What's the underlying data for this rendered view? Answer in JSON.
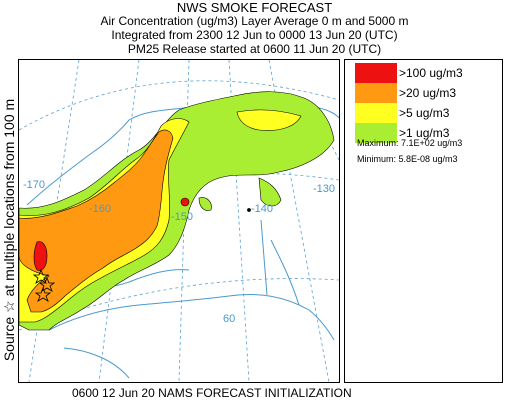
{
  "header": {
    "title": "NWS SMOKE FORECAST",
    "line1": "Air Concentration (ug/m3) Layer Average    0 m  and  5000 m",
    "line2": "Integrated from 2300 12 Jun to 0000 13 Jun 20 (UTC)",
    "line3": "PM25 Release started at 0600 11 Jun 20 (UTC)"
  },
  "side_label": "Source ☆   at multiple locations    from   100 m",
  "footer": "0600 12 Jun 20 NAMS FORECAST INITIALIZATION",
  "legend": {
    "items": [
      {
        "label": ">100 ug/m3",
        "color": "#ee1111"
      },
      {
        "label": ">20 ug/m3",
        "color": "#ff9911"
      },
      {
        "label": ">5 ug/m3",
        "color": "#ffff22"
      },
      {
        "label": ">1 ug/m3",
        "color": "#aaee33"
      }
    ],
    "maximum": "Maximum:  7.1E+02 ug/m3",
    "minimum": "Minimum:  5.8E-08 ug/m3"
  },
  "map": {
    "grid_labels": {
      "lon_170": "-170",
      "lon_160": "-160",
      "lon_150": "-150",
      "lon_140": "-140",
      "lon_130": "-130",
      "lat_60": "60"
    },
    "colors": {
      "coast": "#4a9acd",
      "grid": "#5aa0d0",
      "contour": "#000000"
    }
  }
}
